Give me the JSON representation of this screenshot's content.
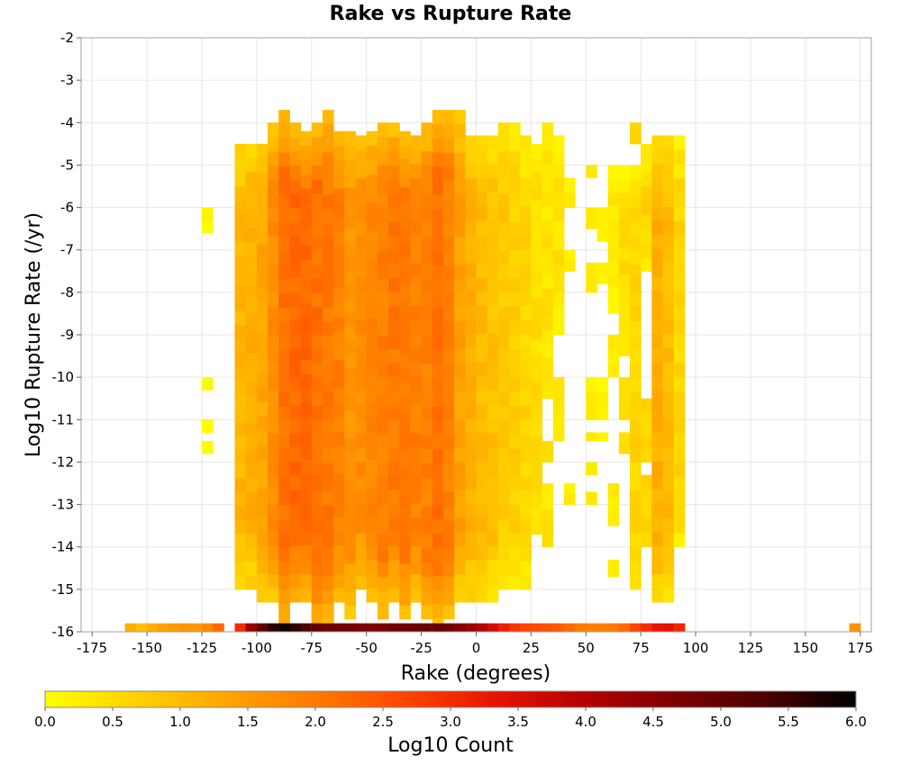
{
  "chart_data": {
    "type": "heatmap",
    "title": "Rake vs Rupture Rate",
    "xlabel": "Rake (degrees)",
    "ylabel": "Log10 Rupture Rate (/yr)",
    "colorbar_label": "Log10 Count",
    "xlim": [
      -180,
      180
    ],
    "ylim": [
      -16,
      -2
    ],
    "x_ticks": [
      "-175",
      "-150",
      "-125",
      "-100",
      "-75",
      "-50",
      "-25",
      "0",
      "25",
      "50",
      "75",
      "100",
      "125",
      "150",
      "175"
    ],
    "y_ticks": [
      "-2",
      "-3",
      "-4",
      "-5",
      "-6",
      "-7",
      "-8",
      "-9",
      "-10",
      "-11",
      "-12",
      "-13",
      "-14",
      "-15",
      "-16"
    ],
    "colorbar_ticks": [
      "0.0",
      "0.5",
      "1.0",
      "1.5",
      "2.0",
      "2.5",
      "3.0",
      "3.5",
      "4.0",
      "4.5",
      "5.0",
      "5.5",
      "6.0"
    ],
    "colorbar_range": [
      0,
      6
    ],
    "colormap": [
      "#ffff00",
      "#ffd200",
      "#ffa500",
      "#ff7a00",
      "#ff4500",
      "#e61400",
      "#b40000",
      "#7d0000",
      "#4b0000",
      "#000000"
    ],
    "grid": true,
    "bin_width_deg": 5,
    "bin_height_log": 0.3333,
    "columns": [
      {
        "x_center": -157.5,
        "ranges": [],
        "bottom_value": 1.2
      },
      {
        "x_center": -152.5,
        "ranges": [],
        "bottom_value": 0.9
      },
      {
        "x_center": -147.5,
        "ranges": [],
        "bottom_value": 1.2
      },
      {
        "x_center": -142.5,
        "ranges": [],
        "bottom_value": 1.4
      },
      {
        "x_center": -137.5,
        "ranges": [],
        "bottom_value": 1.5
      },
      {
        "x_center": -132.5,
        "ranges": [],
        "bottom_value": 1.6
      },
      {
        "x_center": -127.5,
        "ranges": [],
        "bottom_value": 1.5
      },
      {
        "x_center": -122.5,
        "ranges": [
          [
            -6.6,
            -6.0
          ],
          [
            -10.3,
            -10.0
          ],
          [
            -11.3,
            -11.0
          ],
          [
            -11.8,
            -11.5
          ]
        ],
        "level": 0.2,
        "bottom_value": 1.8
      },
      {
        "x_center": -117.5,
        "ranges": [],
        "bottom_value": 2.2
      },
      {
        "x_center": -107.5,
        "ranges": [
          [
            -15.0,
            -4.5
          ]
        ],
        "level": 1.1,
        "bottom_value": 3.0
      },
      {
        "x_center": -102.5,
        "ranges": [
          [
            -15.0,
            -4.5
          ]
        ],
        "level": 1.2,
        "bottom_value": 4.3
      },
      {
        "x_center": -97.5,
        "ranges": [
          [
            -15.3,
            -4.5
          ]
        ],
        "level": 1.3,
        "bottom_value": 5.0
      },
      {
        "x_center": -92.5,
        "ranges": [
          [
            -15.3,
            -4.0
          ]
        ],
        "level": 1.7,
        "bottom_value": 5.6
      },
      {
        "x_center": -87.5,
        "ranges": [
          [
            -16.0,
            -3.7
          ]
        ],
        "level": 2.1,
        "bottom_value": 5.9
      },
      {
        "x_center": -82.5,
        "ranges": [
          [
            -15.3,
            -4.0
          ]
        ],
        "level": 2.2,
        "bottom_value": 5.6
      },
      {
        "x_center": -77.5,
        "ranges": [
          [
            -15.3,
            -4.2
          ]
        ],
        "level": 2.2,
        "bottom_value": 5.3
      },
      {
        "x_center": -72.5,
        "ranges": [
          [
            -16.0,
            -4.0
          ]
        ],
        "level": 2.1,
        "bottom_value": 5.1
      },
      {
        "x_center": -67.5,
        "ranges": [
          [
            -16.0,
            -3.7
          ]
        ],
        "level": 2.0,
        "bottom_value": 4.9
      },
      {
        "x_center": -62.5,
        "ranges": [
          [
            -15.3,
            -4.2
          ]
        ],
        "level": 1.9,
        "bottom_value": 4.8
      },
      {
        "x_center": -57.5,
        "ranges": [
          [
            -15.7,
            -4.2
          ]
        ],
        "level": 1.6,
        "bottom_value": 4.8
      },
      {
        "x_center": -52.5,
        "ranges": [
          [
            -15.0,
            -4.3
          ]
        ],
        "level": 1.7,
        "bottom_value": 4.7
      },
      {
        "x_center": -47.5,
        "ranges": [
          [
            -15.3,
            -4.2
          ]
        ],
        "level": 1.8,
        "bottom_value": 4.6
      },
      {
        "x_center": -42.5,
        "ranges": [
          [
            -15.7,
            -4.0
          ]
        ],
        "level": 1.9,
        "bottom_value": 4.7
      },
      {
        "x_center": -37.5,
        "ranges": [
          [
            -15.3,
            -4.0
          ]
        ],
        "level": 2.0,
        "bottom_value": 4.8
      },
      {
        "x_center": -32.5,
        "ranges": [
          [
            -15.7,
            -4.2
          ]
        ],
        "level": 2.0,
        "bottom_value": 4.8
      },
      {
        "x_center": -27.5,
        "ranges": [
          [
            -15.3,
            -4.3
          ]
        ],
        "level": 1.9,
        "bottom_value": 4.9
      },
      {
        "x_center": -22.5,
        "ranges": [
          [
            -15.7,
            -4.0
          ]
        ],
        "level": 1.9,
        "bottom_value": 4.9
      },
      {
        "x_center": -17.5,
        "ranges": [
          [
            -16.0,
            -3.7
          ]
        ],
        "level": 2.1,
        "bottom_value": 5.0
      },
      {
        "x_center": -12.5,
        "ranges": [
          [
            -15.7,
            -3.7
          ]
        ],
        "level": 1.9,
        "bottom_value": 4.8
      },
      {
        "x_center": -7.5,
        "ranges": [
          [
            -15.3,
            -3.7
          ]
        ],
        "level": 1.4,
        "bottom_value": 4.6
      },
      {
        "x_center": -2.5,
        "ranges": [
          [
            -15.3,
            -4.3
          ]
        ],
        "level": 1.2,
        "bottom_value": 4.3
      },
      {
        "x_center": 2.5,
        "ranges": [
          [
            -15.3,
            -4.3
          ]
        ],
        "level": 1.0,
        "bottom_value": 4.0
      },
      {
        "x_center": 7.5,
        "ranges": [
          [
            -15.3,
            -4.3
          ]
        ],
        "level": 0.9,
        "bottom_value": 3.6
      },
      {
        "x_center": 12.5,
        "ranges": [
          [
            -15.0,
            -4.0
          ]
        ],
        "level": 0.8,
        "bottom_value": 3.2
      },
      {
        "x_center": 17.5,
        "ranges": [
          [
            -15.0,
            -4.0
          ]
        ],
        "level": 0.7,
        "bottom_value": 2.9
      },
      {
        "x_center": 22.5,
        "ranges": [
          [
            -15.0,
            -4.3
          ]
        ],
        "level": 0.6,
        "bottom_value": 2.7
      },
      {
        "x_center": 27.5,
        "ranges": [
          [
            -13.7,
            -4.5
          ]
        ],
        "level": 0.5,
        "bottom_value": 2.6
      },
      {
        "x_center": 32.5,
        "ranges": [
          [
            -10.5,
            -4.0
          ],
          [
            -12.0,
            -11.5
          ],
          [
            -14.0,
            -12.5
          ]
        ],
        "level": 0.4,
        "bottom_value": 2.5
      },
      {
        "x_center": 37.5,
        "ranges": [
          [
            -9.0,
            -4.3
          ],
          [
            -11.5,
            -10.0
          ]
        ],
        "level": 0.4,
        "bottom_value": 2.4
      },
      {
        "x_center": 42.5,
        "ranges": [
          [
            -6.0,
            -5.3
          ],
          [
            -7.5,
            -7.0
          ],
          [
            -13.0,
            -12.5
          ]
        ],
        "level": 0.3,
        "bottom_value": 2.2
      },
      {
        "x_center": 47.5,
        "ranges": [],
        "bottom_value": 2.0
      },
      {
        "x_center": 52.5,
        "ranges": [
          [
            -5.3,
            -5.0
          ],
          [
            -6.5,
            -6.0
          ],
          [
            -8.0,
            -7.3
          ],
          [
            -11.0,
            -10.0
          ],
          [
            -11.5,
            -11.3
          ],
          [
            -12.3,
            -12.0
          ],
          [
            -13.0,
            -12.7
          ]
        ],
        "level": 0.2,
        "bottom_value": 1.9
      },
      {
        "x_center": 57.5,
        "ranges": [
          [
            -6.8,
            -6.0
          ],
          [
            -7.8,
            -7.3
          ],
          [
            -11.0,
            -10.0
          ],
          [
            -11.5,
            -11.3
          ]
        ],
        "level": 0.2,
        "bottom_value": 1.9
      },
      {
        "x_center": 62.5,
        "ranges": [
          [
            -8.5,
            -5.0
          ],
          [
            -10.0,
            -9.0
          ],
          [
            -13.5,
            -12.5
          ],
          [
            -14.7,
            -14.3
          ]
        ],
        "level": 0.4,
        "bottom_value": 2.0
      },
      {
        "x_center": 67.5,
        "ranges": [
          [
            -9.5,
            -5.0
          ],
          [
            -11.0,
            -10.0
          ],
          [
            -11.8,
            -11.3
          ]
        ],
        "level": 0.5,
        "bottom_value": 2.2
      },
      {
        "x_center": 72.5,
        "ranges": [
          [
            -4.5,
            -4.0
          ],
          [
            -15.0,
            -5.0
          ]
        ],
        "level": 0.6,
        "bottom_value": 2.7
      },
      {
        "x_center": 77.5,
        "ranges": [
          [
            -7.5,
            -4.5
          ],
          [
            -12.0,
            -10.5
          ],
          [
            -14.0,
            -12.3
          ]
        ],
        "level": 0.7,
        "bottom_value": 3.0
      },
      {
        "x_center": 82.5,
        "ranges": [
          [
            -15.3,
            -4.3
          ]
        ],
        "level": 1.2,
        "bottom_value": 3.3
      },
      {
        "x_center": 87.5,
        "ranges": [
          [
            -15.3,
            -4.3
          ]
        ],
        "level": 1.0,
        "bottom_value": 3.4
      },
      {
        "x_center": 92.5,
        "ranges": [
          [
            -14.0,
            -4.3
          ]
        ],
        "level": 0.6,
        "bottom_value": 3.1
      },
      {
        "x_center": 172.5,
        "ranges": [],
        "bottom_value": 1.6
      }
    ]
  }
}
